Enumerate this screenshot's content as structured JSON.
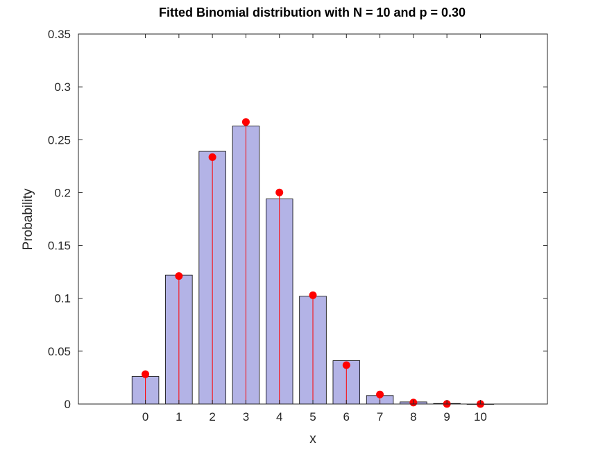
{
  "chart_data": {
    "type": "bar",
    "title": "Fitted Binomial distribution with N = 10 and p = 0.30",
    "xlabel": "x",
    "ylabel": "Probability",
    "categories": [
      "0",
      "1",
      "2",
      "3",
      "4",
      "5",
      "6",
      "7",
      "8",
      "9",
      "10"
    ],
    "x": [
      0,
      1,
      2,
      3,
      4,
      5,
      6,
      7,
      8,
      9,
      10
    ],
    "xlim": [
      -2,
      12
    ],
    "ylim": [
      0,
      0.35
    ],
    "yticks": [
      "0",
      "0.05",
      "0.1",
      "0.15",
      "0.2",
      "0.25",
      "0.3",
      "0.35"
    ],
    "series": [
      {
        "kind": "bar",
        "values": [
          0.026,
          0.122,
          0.239,
          0.263,
          0.194,
          0.102,
          0.041,
          0.008,
          0.002,
          0.0005,
          0.0
        ],
        "color": "#b3b3e6"
      },
      {
        "kind": "stem",
        "values": [
          0.0282,
          0.1211,
          0.2335,
          0.2668,
          0.2001,
          0.1029,
          0.0368,
          0.009,
          0.0014,
          0.0001,
          0.0
        ],
        "color": "#ff0000"
      }
    ],
    "grid": false,
    "legend": "none"
  }
}
